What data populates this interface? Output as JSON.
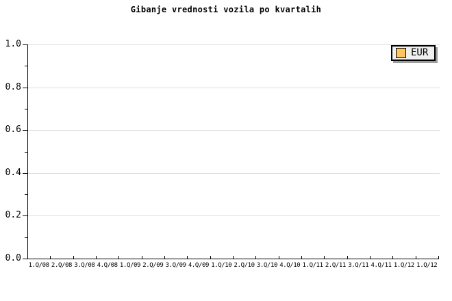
{
  "chart": {
    "title": "Gibanje vrednosti vozila po kvartalih",
    "legend": {
      "label": "EUR",
      "swatch_color": "#FFC55E"
    }
  },
  "chart_data": {
    "type": "line",
    "title": "Gibanje vrednosti vozila po kvartalih",
    "categories": [
      "1.Q/08",
      "2.Q/08",
      "3.Q/08",
      "4.Q/08",
      "1.Q/09",
      "2.Q/09",
      "3.Q/09",
      "4.Q/09",
      "1.Q/10",
      "2.Q/10",
      "3.Q/10",
      "4.Q/10",
      "1.Q/11",
      "2.Q/11",
      "3.Q/11",
      "4.Q/11",
      "1.Q/12",
      "1.Q/12"
    ],
    "series": [
      {
        "name": "EUR",
        "color": "#FFC55E",
        "values": []
      }
    ],
    "xlabel": "",
    "ylabel": "",
    "ylim": [
      0.0,
      1.0
    ],
    "yticks": [
      1.0,
      0.8,
      0.6,
      0.4,
      0.2,
      0.0
    ],
    "ytick_labels": [
      "1.0",
      "0.8",
      "0.6",
      "0.4",
      "0.2",
      "0.0"
    ],
    "y_minor_ticks": [
      0.9,
      0.7,
      0.5,
      0.3,
      0.1
    ],
    "grid": true,
    "gridline_color": "#dcdcdc",
    "legend_position": "top-right"
  }
}
